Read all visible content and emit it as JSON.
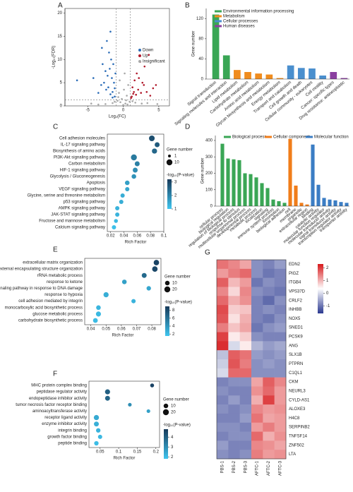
{
  "chart_data": [
    {
      "type": "scatter",
      "label": "A",
      "xlabel": "Log₂(FC)",
      "ylabel": "-Log₁₀(FDR)",
      "xlim": [
        -8.2,
        6.5
      ],
      "ylim": [
        0,
        21
      ],
      "xticks": [
        -5,
        0,
        5
      ],
      "yticks": [
        0,
        5,
        10,
        15,
        20
      ],
      "legend": "right",
      "thresholds": {
        "x": [
          -1,
          1
        ],
        "y": 1.3
      },
      "series": [
        {
          "name": "Down",
          "color": "#2c6db8",
          "x": [
            -1.2,
            -1.5,
            -1.8,
            -2.1,
            -1.3,
            -1.6,
            -2.4,
            -1.1,
            -1.9,
            -2.7,
            -1.4,
            -2.2,
            -3.1,
            -1.7,
            -2.5,
            -1.2,
            -3.5,
            -2.0,
            -1.5,
            -2.9,
            -4.2,
            -2.3,
            -3.0,
            -1.8,
            -6.5
          ],
          "values": [
            2,
            3,
            2.5,
            4,
            5,
            6,
            3.5,
            7,
            8,
            5,
            9,
            6.5,
            4.5,
            10,
            7.5,
            3.8,
            2.8,
            11.5,
            1.8,
            9,
            6,
            14,
            12.5,
            16,
            5.5
          ]
        },
        {
          "name": "Up",
          "color": "#b0182a",
          "x": [
            1.2,
            1.5,
            1.8,
            2.1,
            1.3,
            2.5,
            2.9,
            1.6,
            3.3,
            2.2,
            3.8,
            1.1,
            2.7,
            4.2,
            1.9,
            3.0,
            3.6,
            2.4,
            4.6,
            1.4
          ],
          "values": [
            2,
            3,
            2.4,
            3.5,
            4,
            2.8,
            4.5,
            5.5,
            3,
            6,
            2.2,
            1.7,
            5,
            3.8,
            7,
            8.5,
            11,
            9.5,
            4.5,
            2.6
          ]
        },
        {
          "name": "Insignificant",
          "color": "#a8a8a8",
          "x": [
            0,
            0.3,
            -0.4,
            0.6,
            -0.8,
            0.9,
            -0.2,
            0.5,
            -0.6,
            0.1,
            -1.5,
            1.7,
            -2.5,
            2.6,
            -3.5,
            3.4,
            0.7,
            -0.5,
            0.2,
            -0.7,
            1.3,
            -1.2,
            -4.5,
            4.8,
            0.4
          ],
          "values": [
            0.2,
            0.5,
            0.8,
            0.3,
            1.1,
            0.9,
            1.5,
            2.2,
            2.8,
            3.5,
            0.6,
            0.7,
            0.4,
            0.5,
            0.3,
            0.6,
            4.5,
            5.5,
            7,
            1.9,
            1.0,
            0.9,
            0.5,
            0.4,
            1.2
          ]
        }
      ]
    },
    {
      "type": "bar",
      "label": "B",
      "ylabel": "Gene number",
      "ylim": [
        0,
        140
      ],
      "yticks": [
        0,
        40,
        80,
        120
      ],
      "legend": "top-left",
      "groups": [
        {
          "name": "Environmental information processing",
          "color": "#3aa655",
          "categories": [
            "Signal transduction",
            "Signaling molecules and interaction"
          ],
          "values": [
            128,
            47
          ]
        },
        {
          "name": "Metabolism",
          "color": "#f08c1e",
          "categories": [
            "Lipid metabolism",
            "Carbohydrate metabolism",
            "Amino acid metabolism",
            "Glycan biosynthesis and metabolism",
            "Energy metabolism"
          ],
          "values": [
            18,
            14,
            11,
            9,
            2
          ]
        },
        {
          "name": "Cellular processes",
          "color": "#4a8fce",
          "categories": [
            "Transport and catabolism",
            "Cell growth and death",
            "Cellular community - eukaryotes",
            "Cell motility"
          ],
          "values": [
            27,
            22,
            21,
            7
          ]
        },
        {
          "name": "Human diseases",
          "color": "#8a3fa0",
          "categories": [
            "Cancer: specific types",
            "Drug resistance: antineoplastic"
          ],
          "values": [
            14,
            2
          ]
        }
      ]
    },
    {
      "type": "dot",
      "label": "C",
      "xlabel": "Rich Factor",
      "xlim": [
        0.015,
        0.1
      ],
      "xticks": [
        0.02,
        0.04,
        0.06,
        0.08,
        0.1
      ],
      "terms": [
        "Cell adhesion molecules",
        "IL-17 signaling pathway",
        "Biosynthesis of amino acids",
        "PI3K-Akt signaling pathway",
        "Carbon metabolism",
        "HIF-1 signaling pathway",
        "Glycolysis / Gluconeogenesis",
        "Apoptosis",
        "VEGF signaling pathway",
        "Glycine, serine and threonine metabolism",
        "p53 signaling pathway",
        "AMPK signaling pathway",
        "JAK-STAT signaling pathway",
        "Fructose and mannose metabolism",
        "Calcium signaling pathway"
      ],
      "highlight": [
        false,
        true,
        false,
        true,
        false,
        true,
        false,
        false,
        false,
        false,
        true,
        true,
        true,
        false,
        false
      ],
      "rich_factor": [
        0.082,
        0.09,
        0.086,
        0.055,
        0.06,
        0.057,
        0.055,
        0.045,
        0.045,
        0.038,
        0.036,
        0.03,
        0.03,
        0.028,
        0.025
      ],
      "gene_number": [
        9,
        6,
        7,
        10,
        6,
        6,
        5,
        5,
        4,
        4,
        4,
        4,
        4,
        3,
        4
      ],
      "neg_log10_p": [
        2.9,
        2.7,
        2.5,
        2.2,
        2.1,
        1.9,
        1.8,
        1.6,
        1.5,
        1.4,
        1.4,
        1.3,
        1.3,
        1.2,
        1.1
      ],
      "size_legend": {
        "title": "Gene number",
        "values": [
          1,
          10
        ]
      },
      "color_legend": {
        "title": "-log₁₀(P-value)",
        "ticks": [
          1,
          2,
          3
        ],
        "clim": [
          1,
          3.2
        ]
      }
    },
    {
      "type": "bar",
      "label": "D",
      "ylabel": "Gene number",
      "ylim": [
        0,
        430
      ],
      "yticks": [
        0,
        100,
        200,
        300,
        400
      ],
      "legend": "top",
      "groups": [
        {
          "name": "Biological process",
          "color": "#3aa655",
          "categories": [
            "cellular process",
            "biological regulation",
            "regulation of biological process",
            "response to stimulus",
            "multicellular organismal process",
            "developmental process",
            "metabolic process",
            "localization",
            "signaling",
            "immune system process",
            "locomotion",
            "biological adhesion"
          ],
          "values": [
            380,
            290,
            285,
            280,
            200,
            195,
            175,
            140,
            110,
            40,
            30,
            20
          ]
        },
        {
          "name": "Cellular component",
          "color": "#f07d1a",
          "categories": [
            "cell",
            "membrane",
            "organelle",
            "extracellular region"
          ],
          "values": [
            410,
            125,
            20,
            10
          ]
        },
        {
          "name": "Molecular function",
          "color": "#3b7dc4",
          "categories": [
            "binding",
            "catalytic activity",
            "molecular function regulator",
            "molecular transducer activity",
            "signal transducer activity",
            "transcription regulator activity",
            "transporter activity"
          ],
          "values": [
            375,
            130,
            50,
            40,
            35,
            25,
            20
          ]
        }
      ]
    },
    {
      "type": "dot",
      "label": "E",
      "xlabel": "Rich Factor",
      "xlim": [
        0.036,
        0.086
      ],
      "xticks": [
        0.04,
        0.05,
        0.06,
        0.07,
        0.08
      ],
      "terms": [
        "extracellular matrix organization",
        "external encapsulating structure organization",
        "rRNA metabolic process",
        "response to ketone",
        "intrinsic apoptotic signaling pathway in response to DNA damage",
        "response to hypoxia",
        "cell adhesion mediated by integrin",
        "monocarboxylic acid biosynthetic process",
        "glucose metabolic process",
        "carbohydrate biosynthetic process"
      ],
      "highlight": [
        false,
        false,
        false,
        true,
        false,
        true,
        true,
        false,
        true,
        true
      ],
      "rich_factor": [
        0.083,
        0.082,
        0.075,
        0.062,
        0.078,
        0.05,
        0.068,
        0.045,
        0.045,
        0.043
      ],
      "gene_number": [
        16,
        16,
        12,
        10,
        9,
        14,
        8,
        10,
        13,
        11
      ],
      "neg_log10_p": [
        8.5,
        8.3,
        6.5,
        3.5,
        3.2,
        2.8,
        2.5,
        2.4,
        2.2,
        2.1
      ],
      "size_legend": {
        "title": "Gene number",
        "values": [
          10,
          20
        ]
      },
      "color_legend": {
        "title": "-log₁₀(P-value)",
        "ticks": [
          2,
          4,
          6,
          8
        ],
        "clim": [
          1.5,
          9
        ]
      }
    },
    {
      "type": "dot",
      "label": "F",
      "xlabel": "Rich Factor",
      "xlim": [
        0.02,
        0.21
      ],
      "xticks": [
        0.05,
        0.1,
        0.15,
        0.2
      ],
      "terms": [
        "MHC protein complex binding",
        "peptidase regulator activity",
        "endopeptidase inhibitor activity",
        "tumor necrosis factor receptor binding",
        "aminoacyltransferase activity",
        "receptor ligand activity",
        "enzyme inhibitor activity",
        "integrin binding",
        "growth factor binding",
        "peptide binding"
      ],
      "highlight": [
        false,
        false,
        false,
        false,
        false,
        false,
        false,
        false,
        false,
        false
      ],
      "rich_factor": [
        0.19,
        0.07,
        0.07,
        0.13,
        0.18,
        0.04,
        0.04,
        0.045,
        0.05,
        0.04
      ],
      "gene_number": [
        6,
        13,
        12,
        5,
        5,
        14,
        12,
        9,
        8,
        9
      ],
      "neg_log10_p": [
        4.6,
        4.0,
        3.9,
        3.0,
        2.6,
        2.4,
        2.3,
        2.2,
        2.1,
        2.0
      ],
      "size_legend": {
        "title": "Gene number",
        "values": [
          10,
          20
        ]
      },
      "color_legend": {
        "title": "-log₁₀(P-value)",
        "ticks": [
          2,
          3,
          4
        ],
        "clim": [
          1.8,
          4.8
        ]
      }
    },
    {
      "type": "heatmap",
      "label": "G",
      "columns": [
        "PBS-1",
        "PBS-2",
        "PBS-3",
        "AFTC-1",
        "AFTC-2",
        "AFTC-3"
      ],
      "rows": [
        "EDN2",
        "PIGZ",
        "ITGB4",
        "VPS37D",
        "CRLF2",
        "INHBB",
        "NOX5",
        "SNED1",
        "PCSK9",
        "ANG",
        "SLX1B",
        "PTPRN",
        "C1QL1",
        "CKM",
        "NEURL3",
        "CYLD-AS1",
        "ALOXE3",
        "H4C8",
        "SERPINB2",
        "TNFSF14",
        "ZNF502",
        "LTA"
      ],
      "highlight": [
        true,
        false,
        true,
        false,
        true,
        false,
        true,
        false,
        false,
        true,
        false,
        false,
        false,
        true,
        true,
        true,
        false,
        false,
        false,
        true,
        false,
        false
      ],
      "values": [
        [
          1.4,
          1.2,
          0.9,
          -0.9,
          -1.0,
          -0.8
        ],
        [
          1.0,
          1.3,
          1.5,
          -0.9,
          -1.1,
          -1.0
        ],
        [
          1.6,
          0.7,
          1.0,
          -1.1,
          -0.9,
          -1.0
        ],
        [
          1.2,
          0.4,
          1.2,
          -0.9,
          -1.0,
          -1.1
        ],
        [
          1.5,
          0.8,
          1.1,
          -1.0,
          -1.2,
          -0.9
        ],
        [
          1.8,
          0.5,
          0.6,
          -1.0,
          -0.9,
          -1.0
        ],
        [
          1.7,
          0.3,
          0.8,
          -1.0,
          -1.1,
          -0.9
        ],
        [
          1.3,
          0.6,
          0.9,
          -1.1,
          -0.9,
          -0.8
        ],
        [
          1.9,
          0.2,
          0.5,
          -0.9,
          -1.0,
          -1.0
        ],
        [
          2.1,
          -0.3,
          0.2,
          -0.6,
          -0.8,
          -0.7
        ],
        [
          -0.5,
          1.6,
          1.4,
          -0.8,
          -0.9,
          -0.8
        ],
        [
          -0.4,
          1.7,
          1.3,
          -0.9,
          -0.8,
          -0.9
        ],
        [
          -0.3,
          1.5,
          1.5,
          -0.9,
          -0.9,
          -0.9
        ],
        [
          -1.0,
          -0.9,
          -0.9,
          0.9,
          1.6,
          1.2
        ],
        [
          -0.9,
          -1.0,
          -1.0,
          1.1,
          1.5,
          1.0
        ],
        [
          -1.0,
          -0.8,
          -1.0,
          0.8,
          1.9,
          1.0
        ],
        [
          -0.9,
          -1.0,
          -0.9,
          1.2,
          1.0,
          1.1
        ],
        [
          -1.0,
          -1.0,
          -0.8,
          1.4,
          0.9,
          1.0
        ],
        [
          -0.9,
          -0.9,
          -1.0,
          1.0,
          1.3,
          1.0
        ],
        [
          -1.0,
          -0.9,
          -0.9,
          1.5,
          0.8,
          1.1
        ],
        [
          -0.8,
          -1.0,
          -1.0,
          1.2,
          1.1,
          0.9
        ],
        [
          -0.9,
          -1.0,
          -0.9,
          1.3,
          1.0,
          1.1
        ]
      ],
      "colorbar": {
        "ticks": [
          2,
          1,
          0,
          -1
        ],
        "clim": [
          -1.6,
          2.3
        ]
      }
    }
  ]
}
